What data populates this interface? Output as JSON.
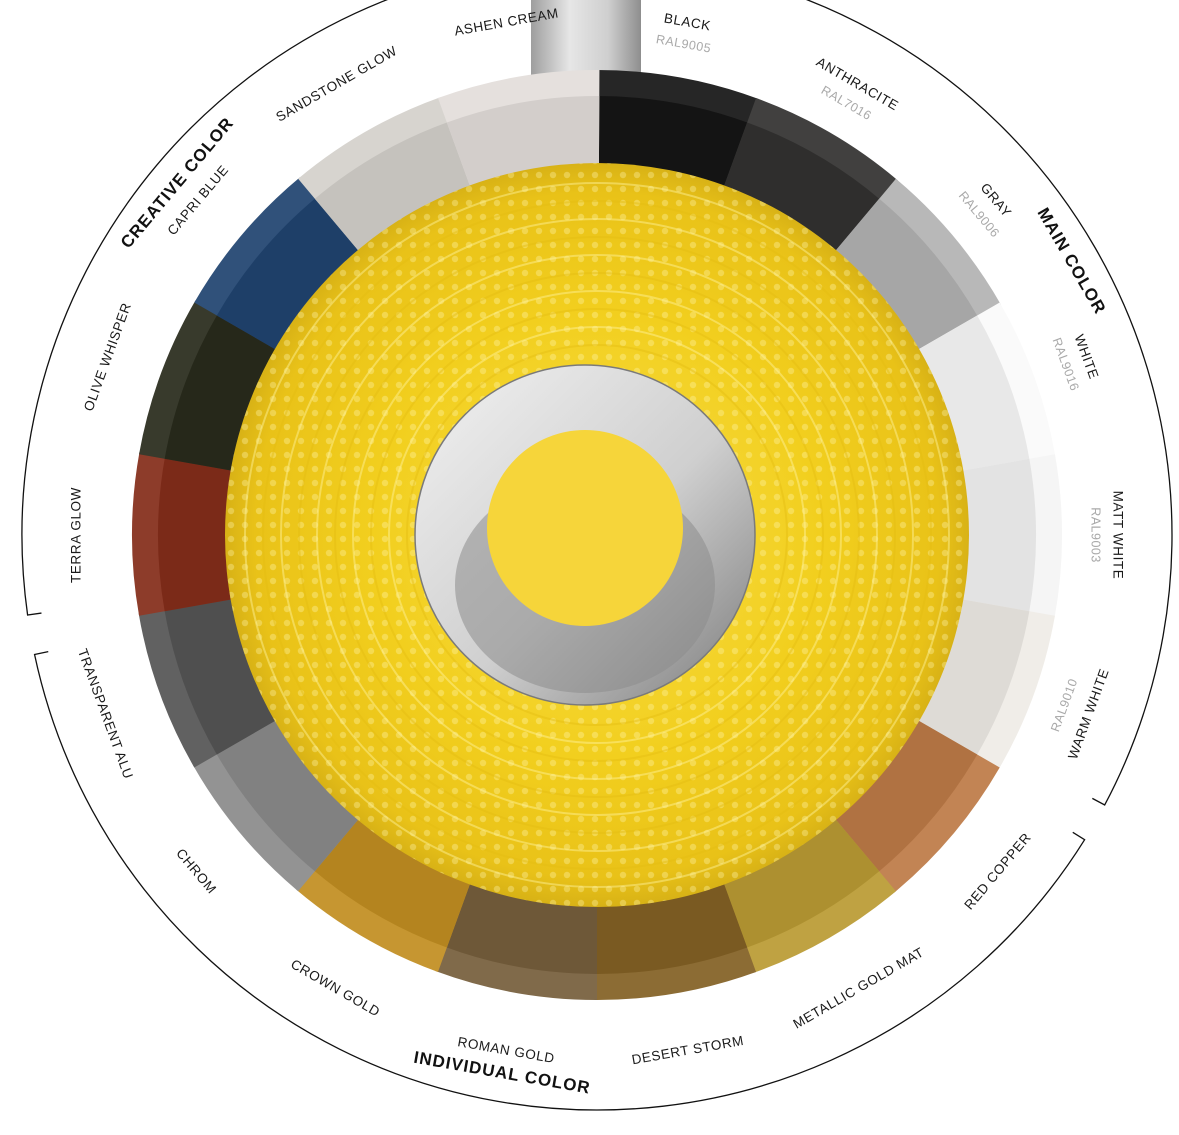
{
  "groups": {
    "main": "MAIN COLOR",
    "creative": "CREATIVE COLOR",
    "individual": "INDIVIDUAL COLOR"
  },
  "swatches": [
    {
      "id": "black",
      "name": "BLACK",
      "ral": "RAL9005",
      "color": "#141414",
      "group": "main"
    },
    {
      "id": "anthracite",
      "name": "ANTHRACITE",
      "ral": "RAL7016",
      "color": "#2f2e2d",
      "group": "main"
    },
    {
      "id": "gray",
      "name": "GRAY",
      "ral": "RAL9006",
      "color": "#a6a6a6",
      "group": "main"
    },
    {
      "id": "white",
      "name": "WHITE",
      "ral": "RAL9016",
      "color": "#e8e8e8",
      "group": "main"
    },
    {
      "id": "matt-white",
      "name": "MATT WHITE",
      "ral": "RAL9003",
      "color": "#e3e3e3",
      "group": "main"
    },
    {
      "id": "warm-white",
      "name": "WARM WHITE",
      "ral": "RAL9010",
      "color": "#dedbd6",
      "group": "main"
    },
    {
      "id": "red-copper",
      "name": "RED COPPER",
      "ral": "",
      "color": "#b07242",
      "group": "individual"
    },
    {
      "id": "metallic-gold-mat",
      "name": "METALLIC GOLD MAT",
      "ral": "",
      "color": "#ad9030",
      "group": "individual"
    },
    {
      "id": "desert-storm",
      "name": "DESERT STORM",
      "ral": "",
      "color": "#7a5a22",
      "group": "individual"
    },
    {
      "id": "roman-gold",
      "name": "ROMAN GOLD",
      "ral": "",
      "color": "#6e5838",
      "group": "individual"
    },
    {
      "id": "crown-gold",
      "name": "CROWN GOLD",
      "ral": "",
      "color": "#b4841f",
      "group": "individual"
    },
    {
      "id": "chrom",
      "name": "CHROM",
      "ral": "",
      "color": "#818181",
      "group": "individual"
    },
    {
      "id": "transparent-alu",
      "name": "TRANSPARENT ALU",
      "ral": "",
      "color": "#4f4f4f",
      "group": "individual"
    },
    {
      "id": "terra-glow",
      "name": "TERRA GLOW",
      "ral": "",
      "color": "#7b2a18",
      "group": "creative"
    },
    {
      "id": "olive-whisper",
      "name": "OLIVE WHISPER",
      "ral": "",
      "color": "#26281a",
      "group": "creative"
    },
    {
      "id": "capri-blue",
      "name": "CAPRI BLUE",
      "ral": "",
      "color": "#1e3f68",
      "group": "creative"
    },
    {
      "id": "sandstone-glow",
      "name": "SANDSTONE GLOW",
      "ral": "",
      "color": "#c5c2bd",
      "group": "creative"
    },
    {
      "id": "ashen-cream",
      "name": "ASHEN CREAM",
      "ral": "",
      "color": "#d3cecb",
      "group": "creative"
    }
  ],
  "colors": {
    "lens_yellow": "#f2cf1e",
    "lens_highlight": "#fff3a8",
    "center_yellow": "#f6d53a",
    "bezel": "#d9d9d9",
    "stem": "#c9c9c9"
  }
}
